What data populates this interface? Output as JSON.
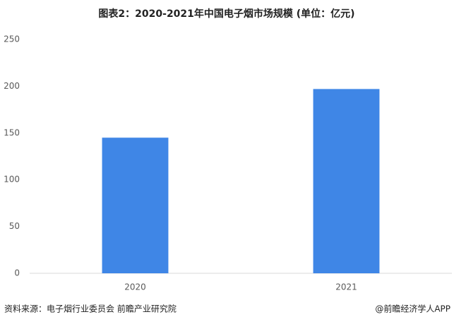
{
  "chart_data": {
    "type": "bar",
    "title": "图表2：2020-2021年中国电子烟市场规模 (单位：亿元)",
    "categories": [
      "2020",
      "2021"
    ],
    "values": [
      145,
      197
    ],
    "color": "#3f86e6",
    "ylim": [
      0,
      250
    ],
    "yticks": [
      0,
      50,
      100,
      150,
      200,
      250
    ],
    "grid": false,
    "source": "资料来源：电子烟行业委员会 前瞻产业研究院",
    "credit": "@前瞻经济学人APP"
  }
}
